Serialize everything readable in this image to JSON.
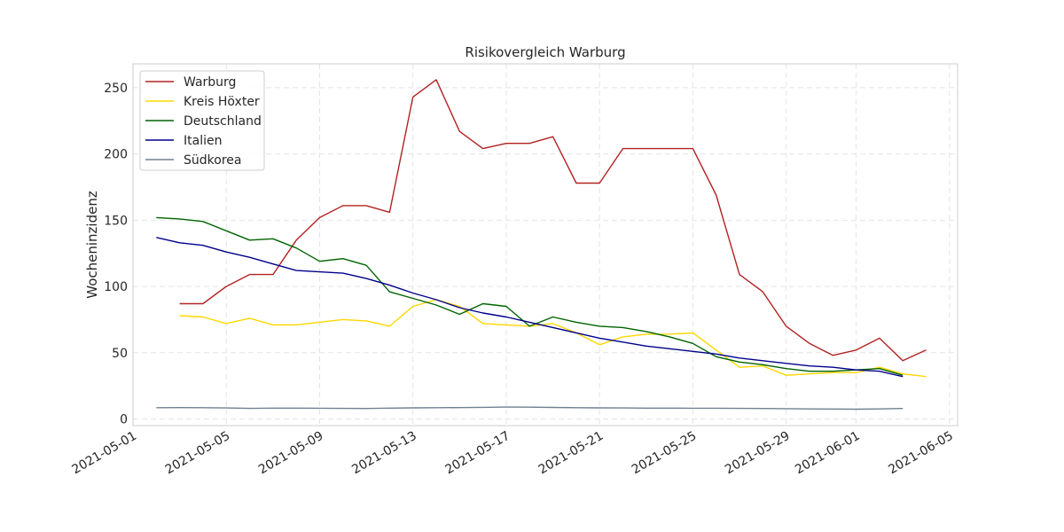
{
  "chart_data": {
    "type": "line",
    "title": "Risikovergleich Warburg",
    "xlabel": "",
    "ylabel": "Wocheninzidenz",
    "x_type": "date",
    "xlim": [
      "2021-05-01",
      "2021-06-05"
    ],
    "ylim": [
      -5,
      268
    ],
    "x_ticks": [
      "2021-05-01",
      "2021-05-05",
      "2021-05-09",
      "2021-05-13",
      "2021-05-17",
      "2021-05-21",
      "2021-05-25",
      "2021-05-29",
      "2021-06-01",
      "2021-06-05"
    ],
    "y_ticks": [
      0,
      50,
      100,
      150,
      200,
      250
    ],
    "grid": true,
    "legend_position": "top-left",
    "series": [
      {
        "name": "Warburg",
        "color": "#b22222",
        "points": [
          [
            "2021-05-03",
            87
          ],
          [
            "2021-05-04",
            87
          ],
          [
            "2021-05-05",
            100
          ],
          [
            "2021-05-06",
            109
          ],
          [
            "2021-05-07",
            109
          ],
          [
            "2021-05-08",
            135
          ],
          [
            "2021-05-09",
            152
          ],
          [
            "2021-05-10",
            161
          ],
          [
            "2021-05-11",
            161
          ],
          [
            "2021-05-12",
            156
          ],
          [
            "2021-05-13",
            243
          ],
          [
            "2021-05-14",
            256
          ],
          [
            "2021-05-15",
            217
          ],
          [
            "2021-05-16",
            204
          ],
          [
            "2021-05-17",
            208
          ],
          [
            "2021-05-18",
            208
          ],
          [
            "2021-05-19",
            213
          ],
          [
            "2021-05-20",
            178
          ],
          [
            "2021-05-21",
            178
          ],
          [
            "2021-05-22",
            204
          ],
          [
            "2021-05-23",
            204
          ],
          [
            "2021-05-24",
            204
          ],
          [
            "2021-05-25",
            204
          ],
          [
            "2021-05-26",
            169
          ],
          [
            "2021-05-27",
            109
          ],
          [
            "2021-05-28",
            96
          ],
          [
            "2021-05-29",
            70
          ],
          [
            "2021-05-30",
            57
          ],
          [
            "2021-05-31",
            48
          ],
          [
            "2021-06-01",
            52
          ],
          [
            "2021-06-02",
            61
          ],
          [
            "2021-06-03",
            44
          ],
          [
            "2021-06-04",
            52
          ]
        ]
      },
      {
        "name": "Kreis Höxter",
        "color": "#ffd700",
        "points": [
          [
            "2021-05-03",
            78
          ],
          [
            "2021-05-04",
            77
          ],
          [
            "2021-05-05",
            72
          ],
          [
            "2021-05-06",
            76
          ],
          [
            "2021-05-07",
            71
          ],
          [
            "2021-05-08",
            71
          ],
          [
            "2021-05-09",
            73
          ],
          [
            "2021-05-10",
            75
          ],
          [
            "2021-05-11",
            74
          ],
          [
            "2021-05-12",
            70
          ],
          [
            "2021-05-13",
            85
          ],
          [
            "2021-05-14",
            90
          ],
          [
            "2021-05-15",
            85
          ],
          [
            "2021-05-16",
            72
          ],
          [
            "2021-05-17",
            71
          ],
          [
            "2021-05-18",
            70
          ],
          [
            "2021-05-19",
            72
          ],
          [
            "2021-05-20",
            65
          ],
          [
            "2021-05-21",
            56
          ],
          [
            "2021-05-22",
            62
          ],
          [
            "2021-05-23",
            64
          ],
          [
            "2021-05-24",
            64
          ],
          [
            "2021-05-25",
            65
          ],
          [
            "2021-05-26",
            52
          ],
          [
            "2021-05-27",
            39
          ],
          [
            "2021-05-28",
            40
          ],
          [
            "2021-05-29",
            33
          ],
          [
            "2021-05-30",
            34
          ],
          [
            "2021-05-31",
            35
          ],
          [
            "2021-06-01",
            35
          ],
          [
            "2021-06-02",
            39
          ],
          [
            "2021-06-03",
            34
          ],
          [
            "2021-06-04",
            32
          ]
        ]
      },
      {
        "name": "Deutschland",
        "color": "#006400",
        "points": [
          [
            "2021-05-02",
            152
          ],
          [
            "2021-05-03",
            151
          ],
          [
            "2021-05-04",
            149
          ],
          [
            "2021-05-05",
            142
          ],
          [
            "2021-05-06",
            135
          ],
          [
            "2021-05-07",
            136
          ],
          [
            "2021-05-08",
            129
          ],
          [
            "2021-05-09",
            119
          ],
          [
            "2021-05-10",
            121
          ],
          [
            "2021-05-11",
            116
          ],
          [
            "2021-05-12",
            96
          ],
          [
            "2021-05-13",
            91
          ],
          [
            "2021-05-14",
            86
          ],
          [
            "2021-05-15",
            79
          ],
          [
            "2021-05-16",
            87
          ],
          [
            "2021-05-17",
            85
          ],
          [
            "2021-05-18",
            70
          ],
          [
            "2021-05-19",
            77
          ],
          [
            "2021-05-20",
            73
          ],
          [
            "2021-05-21",
            70
          ],
          [
            "2021-05-22",
            69
          ],
          [
            "2021-05-23",
            66
          ],
          [
            "2021-05-24",
            62
          ],
          [
            "2021-05-25",
            57
          ],
          [
            "2021-05-26",
            47
          ],
          [
            "2021-05-27",
            43
          ],
          [
            "2021-05-28",
            41
          ],
          [
            "2021-05-29",
            38
          ],
          [
            "2021-05-30",
            36
          ],
          [
            "2021-05-31",
            36
          ],
          [
            "2021-06-01",
            37
          ],
          [
            "2021-06-02",
            38
          ],
          [
            "2021-06-03",
            33
          ]
        ]
      },
      {
        "name": "Italien",
        "color": "#00008b",
        "points": [
          [
            "2021-05-02",
            137
          ],
          [
            "2021-05-03",
            133
          ],
          [
            "2021-05-04",
            131
          ],
          [
            "2021-05-05",
            126
          ],
          [
            "2021-05-06",
            122
          ],
          [
            "2021-05-07",
            117
          ],
          [
            "2021-05-08",
            112
          ],
          [
            "2021-05-09",
            111
          ],
          [
            "2021-05-10",
            110
          ],
          [
            "2021-05-11",
            106
          ],
          [
            "2021-05-12",
            101
          ],
          [
            "2021-05-13",
            95
          ],
          [
            "2021-05-14",
            90
          ],
          [
            "2021-05-15",
            84
          ],
          [
            "2021-05-16",
            80
          ],
          [
            "2021-05-17",
            77
          ],
          [
            "2021-05-18",
            73
          ],
          [
            "2021-05-19",
            69
          ],
          [
            "2021-05-20",
            65
          ],
          [
            "2021-05-21",
            61
          ],
          [
            "2021-05-22",
            58
          ],
          [
            "2021-05-23",
            55
          ],
          [
            "2021-05-24",
            53
          ],
          [
            "2021-05-25",
            51
          ],
          [
            "2021-05-26",
            49
          ],
          [
            "2021-05-27",
            46
          ],
          [
            "2021-05-28",
            44
          ],
          [
            "2021-05-29",
            42
          ],
          [
            "2021-05-30",
            40
          ],
          [
            "2021-05-31",
            39
          ],
          [
            "2021-06-01",
            37
          ],
          [
            "2021-06-02",
            36
          ],
          [
            "2021-06-03",
            32
          ]
        ]
      },
      {
        "name": "Südkorea",
        "color": "#708090",
        "points": [
          [
            "2021-05-02",
            8.5
          ],
          [
            "2021-05-03",
            8.6
          ],
          [
            "2021-05-04",
            8.5
          ],
          [
            "2021-05-05",
            8.3
          ],
          [
            "2021-05-06",
            8.0
          ],
          [
            "2021-05-07",
            8.2
          ],
          [
            "2021-05-08",
            8.2
          ],
          [
            "2021-05-09",
            8.1
          ],
          [
            "2021-05-10",
            8.0
          ],
          [
            "2021-05-11",
            7.9
          ],
          [
            "2021-05-12",
            8.2
          ],
          [
            "2021-05-13",
            8.4
          ],
          [
            "2021-05-14",
            8.5
          ],
          [
            "2021-05-15",
            8.6
          ],
          [
            "2021-05-16",
            8.8
          ],
          [
            "2021-05-17",
            9.0
          ],
          [
            "2021-05-18",
            8.9
          ],
          [
            "2021-05-19",
            8.7
          ],
          [
            "2021-05-20",
            8.5
          ],
          [
            "2021-05-21",
            8.4
          ],
          [
            "2021-05-22",
            8.3
          ],
          [
            "2021-05-23",
            8.2
          ],
          [
            "2021-05-24",
            8.2
          ],
          [
            "2021-05-25",
            8.1
          ],
          [
            "2021-05-26",
            8.1
          ],
          [
            "2021-05-27",
            8.0
          ],
          [
            "2021-05-28",
            7.9
          ],
          [
            "2021-05-29",
            7.8
          ],
          [
            "2021-05-30",
            7.6
          ],
          [
            "2021-05-31",
            7.5
          ],
          [
            "2021-06-01",
            7.4
          ],
          [
            "2021-06-02",
            7.6
          ],
          [
            "2021-06-03",
            7.9
          ]
        ]
      }
    ]
  }
}
